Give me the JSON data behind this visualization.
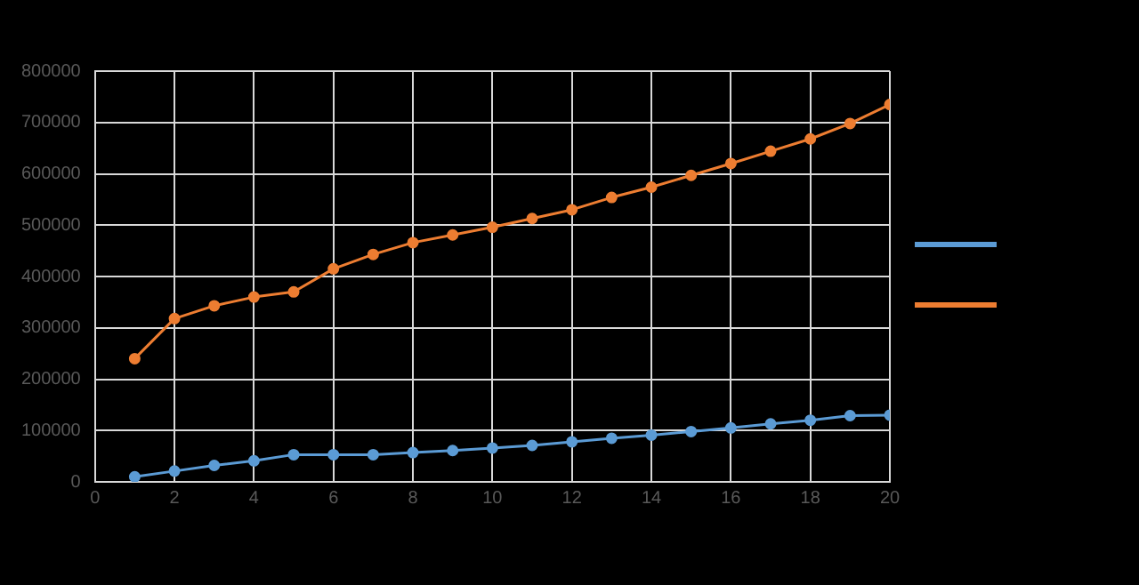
{
  "chart_data": {
    "type": "line",
    "x": [
      1,
      2,
      3,
      4,
      5,
      6,
      7,
      8,
      9,
      10,
      11,
      12,
      13,
      14,
      15,
      16,
      17,
      18,
      19,
      20
    ],
    "series": [
      {
        "color": "#5b9bd5",
        "values": [
          10000,
          21000,
          32000,
          41000,
          53000,
          53000,
          53000,
          57000,
          61000,
          66000,
          71000,
          78000,
          85000,
          91000,
          98000,
          105000,
          113000,
          120000,
          129000,
          130000
        ]
      },
      {
        "color": "#ed7d31",
        "values": [
          240000,
          318000,
          343000,
          360000,
          370000,
          415000,
          443000,
          466000,
          481000,
          496000,
          513000,
          530000,
          554000,
          574000,
          597000,
          620000,
          644000,
          668000,
          698000,
          735000
        ]
      }
    ],
    "xlim": [
      0,
      20
    ],
    "xticks": [
      0,
      2,
      4,
      6,
      8,
      10,
      12,
      14,
      16,
      18,
      20
    ],
    "ylim": [
      0,
      800000
    ],
    "yticks": [
      0,
      100000,
      200000,
      300000,
      400000,
      500000,
      600000,
      700000,
      800000
    ],
    "grid": true,
    "marker": "circle",
    "line_style": "solid"
  }
}
